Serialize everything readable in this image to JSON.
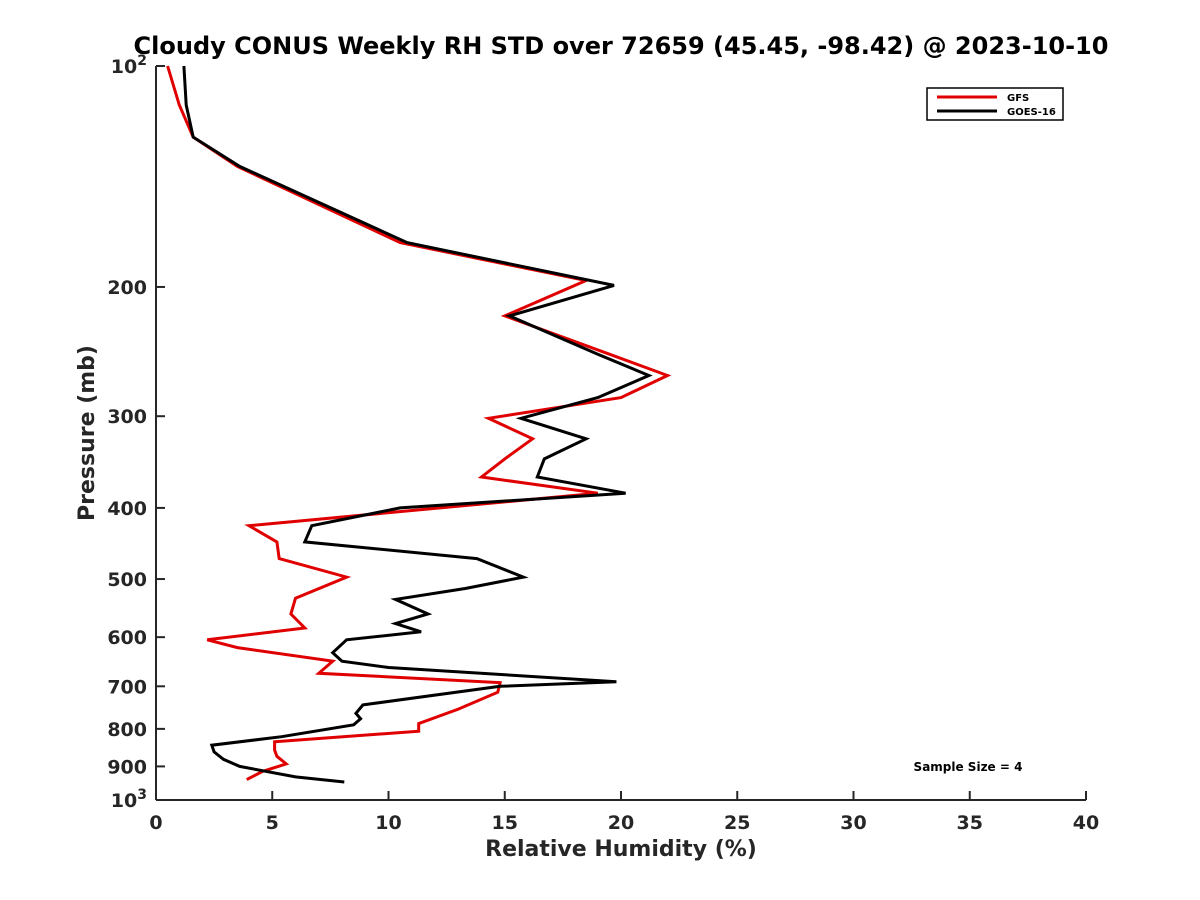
{
  "chart_data": {
    "type": "line",
    "title": "Cloudy CONUS Weekly RH STD over 72659 (45.45, -98.42) @ 2023-10-10",
    "xlabel": "Relative Humidity (%)",
    "ylabel": "Pressure (mb)",
    "xlim": [
      0,
      40
    ],
    "ylim": [
      100,
      1000
    ],
    "y_scale": "log",
    "y_reversed": true,
    "x_ticks": [
      0,
      5,
      10,
      15,
      20,
      25,
      30,
      35,
      40
    ],
    "x_tick_labels": [
      "0",
      "5",
      "10",
      "15",
      "20",
      "25",
      "30",
      "35",
      "40"
    ],
    "y_ticks": [
      100,
      200,
      300,
      400,
      500,
      600,
      700,
      800,
      900,
      1000
    ],
    "y_tick_labels": [
      {
        "base": "10",
        "exp": "2"
      },
      {
        "base": "200",
        "exp": ""
      },
      {
        "base": "300",
        "exp": ""
      },
      {
        "base": "400",
        "exp": ""
      },
      {
        "base": "500",
        "exp": ""
      },
      {
        "base": "600",
        "exp": ""
      },
      {
        "base": "700",
        "exp": ""
      },
      {
        "base": "800",
        "exp": ""
      },
      {
        "base": "900",
        "exp": ""
      },
      {
        "base": "10",
        "exp": "3"
      }
    ],
    "grid": false,
    "legend_position": "top-right",
    "series": [
      {
        "name": "GFS",
        "color": "#e00000",
        "points": [
          [
            0.5,
            100
          ],
          [
            1.0,
            113
          ],
          [
            1.6,
            125
          ],
          [
            3.5,
            137
          ],
          [
            10.5,
            174
          ],
          [
            18.5,
            196
          ],
          [
            15.0,
            219
          ],
          [
            19.5,
            247
          ],
          [
            22.0,
            264
          ],
          [
            20.0,
            283
          ],
          [
            14.3,
            302
          ],
          [
            16.2,
            322
          ],
          [
            15.0,
            343
          ],
          [
            14.0,
            363
          ],
          [
            19.0,
            382
          ],
          [
            4.0,
            423
          ],
          [
            5.2,
            445
          ],
          [
            5.3,
            469
          ],
          [
            8.2,
            497
          ],
          [
            6.0,
            531
          ],
          [
            5.8,
            558
          ],
          [
            6.4,
            583
          ],
          [
            2.2,
            605
          ],
          [
            3.5,
            620
          ],
          [
            7.6,
            647
          ],
          [
            7.0,
            672
          ],
          [
            14.8,
            692
          ],
          [
            14.7,
            713
          ],
          [
            13.0,
            752
          ],
          [
            11.3,
            787
          ],
          [
            11.3,
            806
          ],
          [
            5.1,
            833
          ],
          [
            5.1,
            855
          ],
          [
            5.2,
            872
          ],
          [
            5.6,
            893
          ],
          [
            4.6,
            914
          ],
          [
            3.9,
            938
          ]
        ]
      },
      {
        "name": "GOES-16",
        "color": "#000000",
        "points": [
          [
            1.2,
            100
          ],
          [
            1.3,
            113
          ],
          [
            1.6,
            125
          ],
          [
            3.6,
            137
          ],
          [
            10.8,
            174
          ],
          [
            19.7,
            199
          ],
          [
            15.2,
            219
          ],
          [
            19.0,
            247
          ],
          [
            21.2,
            264
          ],
          [
            19.0,
            283
          ],
          [
            15.7,
            302
          ],
          [
            18.5,
            322
          ],
          [
            16.7,
            343
          ],
          [
            16.4,
            363
          ],
          [
            20.2,
            382
          ],
          [
            10.5,
            400
          ],
          [
            6.7,
            423
          ],
          [
            6.4,
            445
          ],
          [
            13.8,
            469
          ],
          [
            15.8,
            497
          ],
          [
            13.3,
            515
          ],
          [
            10.3,
            533
          ],
          [
            11.7,
            558
          ],
          [
            10.3,
            575
          ],
          [
            11.4,
            590
          ],
          [
            8.2,
            605
          ],
          [
            7.6,
            630
          ],
          [
            8.0,
            647
          ],
          [
            10.0,
            660
          ],
          [
            19.8,
            690
          ],
          [
            14.8,
            700
          ],
          [
            8.9,
            742
          ],
          [
            8.6,
            762
          ],
          [
            8.8,
            775
          ],
          [
            8.5,
            790
          ],
          [
            5.4,
            820
          ],
          [
            2.4,
            842
          ],
          [
            2.5,
            860
          ],
          [
            2.9,
            880
          ],
          [
            3.6,
            900
          ],
          [
            6.0,
            930
          ],
          [
            8.1,
            945
          ]
        ]
      }
    ],
    "annotations": [
      "Sample Size = 4"
    ]
  }
}
